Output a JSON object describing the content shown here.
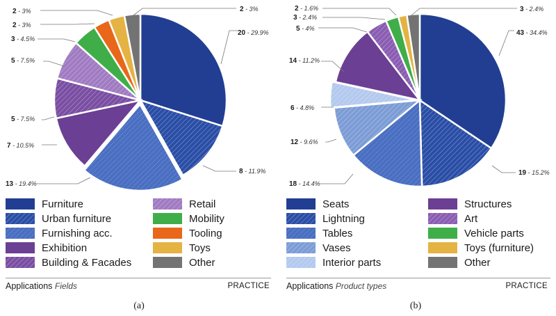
{
  "chart_data": [
    {
      "type": "pie",
      "panel": "a",
      "title": "Applications",
      "subtitle": "Fields",
      "tag": "PRACTICE",
      "caption": "(a)",
      "slices": [
        {
          "name": "Furniture",
          "count": 20,
          "count_label": "20",
          "pct_label": "- 29.9%",
          "color": "#223e92",
          "pattern": "solid"
        },
        {
          "name": "Urban furniture",
          "count": 8,
          "count_label": "8",
          "pct_label": "- 11.9%",
          "color": "#2a4ea6",
          "pattern": "hatch"
        },
        {
          "name": "Furnishing acc.",
          "count": 13,
          "count_label": "13",
          "pct_label": "- 19.4%",
          "color": "#4a6fc2",
          "pattern": "dots"
        },
        {
          "name": "Exhibition",
          "count": 7,
          "count_label": "7",
          "pct_label": "- 10.5%",
          "color": "#6b3f93",
          "pattern": "solid"
        },
        {
          "name": "Building & Facades",
          "count": 5,
          "count_label": "5",
          "pct_label": "- 7.5%",
          "color": "#7a4ea3",
          "pattern": "hatch"
        },
        {
          "name": "Retail",
          "count": 5,
          "count_label": "5",
          "pct_label": "- 7.5%",
          "color": "#a07bc2",
          "pattern": "hatch"
        },
        {
          "name": "Mobility",
          "count": 3,
          "count_label": "3",
          "pct_label": "- 4.5%",
          "color": "#3fae49",
          "pattern": "solid"
        },
        {
          "name": "Tooling",
          "count": 2,
          "count_label": "2",
          "pct_label": "- 3%",
          "color": "#e8671a",
          "pattern": "solid"
        },
        {
          "name": "Toys",
          "count": 2,
          "count_label": "2",
          "pct_label": "- 3%",
          "color": "#e4b343",
          "pattern": "solid"
        },
        {
          "name": "Other",
          "count": 2,
          "count_label": "2",
          "pct_label": "- 3%",
          "color": "#737373",
          "pattern": "solid"
        }
      ]
    },
    {
      "type": "pie",
      "panel": "b",
      "title": "Applications",
      "subtitle": "Product types",
      "tag": "PRACTICE",
      "caption": "(b)",
      "slices": [
        {
          "name": "Seats",
          "count": 43,
          "count_label": "43",
          "pct_label": "- 34.4%",
          "color": "#223e92",
          "pattern": "solid"
        },
        {
          "name": "Lightning",
          "count": 19,
          "count_label": "19",
          "pct_label": "- 15.2%",
          "color": "#2a4ea6",
          "pattern": "hatch"
        },
        {
          "name": "Tables",
          "count": 18,
          "count_label": "18",
          "pct_label": "- 14.4%",
          "color": "#4a6fc2",
          "pattern": "dots"
        },
        {
          "name": "Vases",
          "count": 12,
          "count_label": "12",
          "pct_label": "- 9.6%",
          "color": "#7c9cd6",
          "pattern": "hatch"
        },
        {
          "name": "Interior parts",
          "count": 6,
          "count_label": "6",
          "pct_label": "- 4.8%",
          "color": "#b4c9ee",
          "pattern": "hatch"
        },
        {
          "name": "Structures",
          "count": 14,
          "count_label": "14",
          "pct_label": "- 11.2%",
          "color": "#6b3f93",
          "pattern": "solid"
        },
        {
          "name": "Art",
          "count": 5,
          "count_label": "5",
          "pct_label": "- 4%",
          "color": "#8a5db3",
          "pattern": "hatch"
        },
        {
          "name": "Vehicle parts",
          "count": 3,
          "count_label": "3",
          "pct_label": "- 2.4%",
          "color": "#3fae49",
          "pattern": "solid"
        },
        {
          "name": "Toys (furniture)",
          "count": 2,
          "count_label": "2",
          "pct_label": "- 1.6%",
          "color": "#e4b343",
          "pattern": "solid"
        },
        {
          "name": "Other",
          "count": 3,
          "count_label": "3",
          "pct_label": "- 2.4%",
          "color": "#737373",
          "pattern": "solid"
        }
      ]
    }
  ]
}
